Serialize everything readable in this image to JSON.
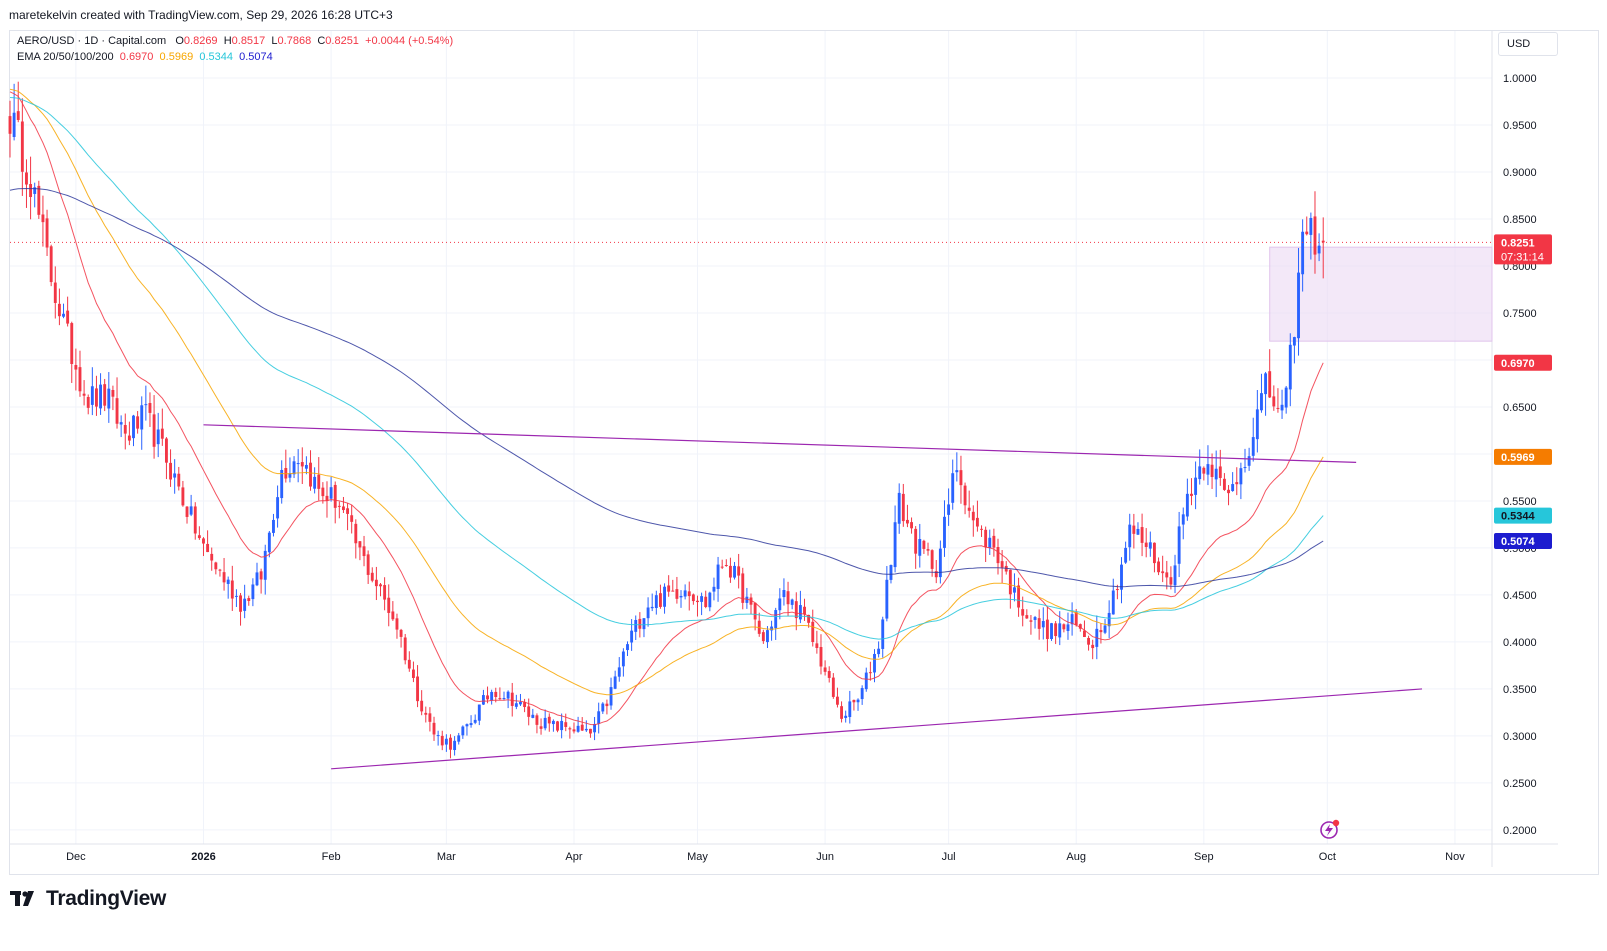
{
  "header": {
    "author_line": "maretekelvin created with TradingView.com, Sep 29, 2026 16:28 UTC+3"
  },
  "legend": {
    "symbol": "AERO/USD · 1D · Capital.com",
    "o_label": "O",
    "o_value": "0.8269",
    "h_label": "H",
    "h_value": "0.8517",
    "l_label": "L",
    "l_value": "0.7868",
    "c_label": "C",
    "c_value": "0.8251",
    "change": "+0.0044 (+0.54%)",
    "ema_label": "EMA 20/50/100/200",
    "ema20": "0.6970",
    "ema50": "0.5969",
    "ema100": "0.5344",
    "ema200": "0.5074"
  },
  "currency_button": "USD",
  "branding": {
    "text": "TradingView",
    "logo_icon": "tradingview-logo-icon",
    "bolt_icon": "lightning-icon"
  },
  "colors": {
    "up": "#2962ff",
    "down": "#f23645",
    "ema20": "#f23645",
    "ema50": "#f7a600",
    "ema100": "#26c6da",
    "ema200": "#2f3a9c",
    "trendline": "#9c27b0",
    "zone": "#ead6f2"
  },
  "chart_data": {
    "type": "candlestick",
    "symbol": "AERO/USD",
    "timeframe": "1D",
    "y_ticks": [
      "0.2000",
      "0.2500",
      "0.3000",
      "0.3500",
      "0.4000",
      "0.4500",
      "0.5000",
      "0.5500",
      "0.6000",
      "0.6500",
      "0.7000",
      "0.7500",
      "0.8000",
      "0.8500",
      "0.9000",
      "0.9500",
      "1.0000"
    ],
    "ylim": [
      0.185,
      1.05
    ],
    "x_ticks": [
      {
        "label": "Dec",
        "date": "2025-12-01"
      },
      {
        "label": "2026",
        "date": "2026-01-01",
        "bold": true
      },
      {
        "label": "Feb",
        "date": "2026-02-01"
      },
      {
        "label": "Mar",
        "date": "2026-03-01"
      },
      {
        "label": "Apr",
        "date": "2026-04-01"
      },
      {
        "label": "May",
        "date": "2026-05-01"
      },
      {
        "label": "Jun",
        "date": "2026-06-01"
      },
      {
        "label": "Jul",
        "date": "2026-07-01"
      },
      {
        "label": "Aug",
        "date": "2026-08-01"
      },
      {
        "label": "Sep",
        "date": "2026-09-01"
      },
      {
        "label": "Oct",
        "date": "2026-10-01"
      },
      {
        "label": "Nov",
        "date": "2026-11-01"
      }
    ],
    "xlim": [
      "2025-11-15",
      "2026-11-10"
    ],
    "first_candle_date": "2025-11-15",
    "close_path": [
      0.96,
      0.9,
      0.8,
      0.72,
      0.66,
      0.66,
      0.62,
      0.64,
      0.6,
      0.55,
      0.5,
      0.47,
      0.44,
      0.47,
      0.58,
      0.6,
      0.56,
      0.55,
      0.5,
      0.46,
      0.42,
      0.35,
      0.3,
      0.29,
      0.32,
      0.35,
      0.34,
      0.32,
      0.31,
      0.31,
      0.3,
      0.34,
      0.4,
      0.44,
      0.45,
      0.46,
      0.44,
      0.49,
      0.45,
      0.4,
      0.45,
      0.43,
      0.38,
      0.32,
      0.34,
      0.4,
      0.55,
      0.5,
      0.48,
      0.59,
      0.52,
      0.5,
      0.45,
      0.42,
      0.41,
      0.42,
      0.4,
      0.44,
      0.52,
      0.5,
      0.46,
      0.56,
      0.6,
      0.55,
      0.6,
      0.67,
      0.64,
      0.84,
      0.8251
    ],
    "current_price": {
      "value": "0.8251",
      "countdown": "07:31:14"
    },
    "ema_labels": [
      {
        "name": "EMA 20",
        "value": "0.6970"
      },
      {
        "name": "EMA 50",
        "value": "0.5969"
      },
      {
        "name": "EMA 100",
        "value": "0.5344"
      },
      {
        "name": "EMA 200",
        "value": "0.5074"
      }
    ],
    "ema_start": [
      0.99,
      0.99,
      0.98,
      0.88
    ],
    "ema_end": [
      0.697,
      0.5969,
      0.5344,
      0.5074
    ],
    "trendlines": [
      {
        "x1": "2026-01-01",
        "y1": 0.631,
        "x2": "2026-10-08",
        "y2": 0.591
      },
      {
        "x1": "2026-02-01",
        "y1": 0.265,
        "x2": "2026-10-24",
        "y2": 0.35
      }
    ],
    "zone": {
      "x1": "2026-09-17",
      "x2": "2026-11-10",
      "y1": 0.72,
      "y2": 0.82
    }
  }
}
